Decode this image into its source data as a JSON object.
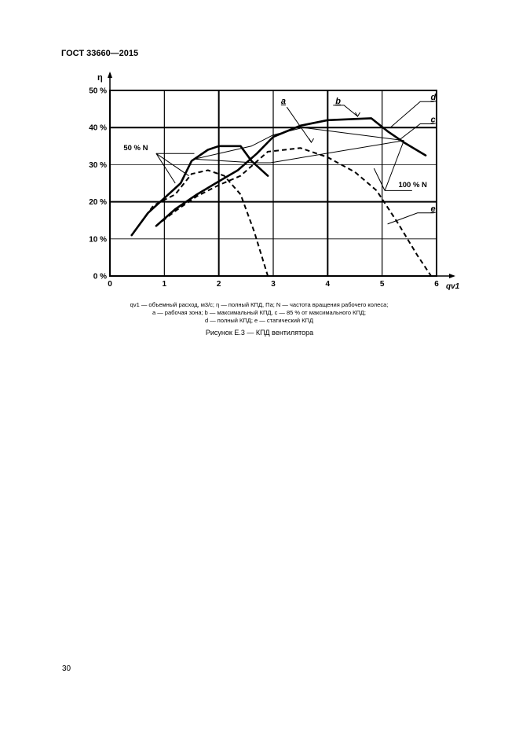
{
  "header": {
    "doc_id": "ГОСТ 33660—2015"
  },
  "legend_lines": [
    "qv1 — объемный расход, м3/с; η — полный КПД, Па; N — частота вращения рабочего колеса;",
    "a — рабочая зона; b — максимальный КПД, c — 85 % от максимального КПД;",
    "d — полный КПД; e — статический КПД"
  ],
  "caption": "Рисунок Е.3 — КПД вентилятора",
  "page_number": "30",
  "chart_data": {
    "type": "line",
    "title": "",
    "xlabel": "qv1",
    "ylabel": "η",
    "xlim": [
      0,
      6
    ],
    "ylim": [
      0,
      50
    ],
    "x_ticks": [
      "0",
      "1",
      "2",
      "3",
      "4",
      "5",
      "6"
    ],
    "y_ticks": [
      "0 %",
      "10 %",
      "20 %",
      "30 %",
      "40 %",
      "50 %"
    ],
    "grid": true,
    "series": [
      {
        "name": "d",
        "style": "solid-thick",
        "x": [
          0.4,
          0.7,
          1.0,
          1.3,
          1.5,
          1.8,
          2.0,
          2.4,
          2.6,
          2.9
        ],
        "y": [
          11,
          17,
          21,
          25,
          31,
          34,
          35,
          35,
          31,
          27
        ]
      },
      {
        "name": "d",
        "style": "solid-thick",
        "x": [
          0.85,
          1.2,
          1.6,
          2.0,
          2.35,
          2.7,
          3.0,
          3.5,
          4.0,
          4.8,
          5.1,
          5.4,
          5.8
        ],
        "y": [
          13.5,
          18,
          22,
          25.5,
          28.5,
          33,
          37.5,
          40.5,
          42,
          42.5,
          39,
          36,
          32.5
        ]
      },
      {
        "name": "e",
        "style": "dashed",
        "x": [
          0.4,
          0.8,
          1.2,
          1.5,
          1.8,
          2.1,
          2.4,
          2.65,
          2.9
        ],
        "y": [
          11,
          19,
          22,
          27.5,
          28.5,
          27,
          22,
          12,
          0
        ]
      },
      {
        "name": "e",
        "style": "dashed",
        "x": [
          0.85,
          1.2,
          1.6,
          2.0,
          2.4,
          2.9,
          3.5,
          4.0,
          4.5,
          4.9,
          5.3,
          5.65,
          5.9
        ],
        "y": [
          13.5,
          17.5,
          21.5,
          24.5,
          27,
          33.5,
          34.5,
          32,
          28,
          23,
          14,
          5.5,
          0
        ]
      },
      {
        "name": "a",
        "style": "solid-thin",
        "x": [
          1.55,
          2.6,
          3.0,
          3.55,
          5.4,
          5.4,
          2.95,
          2.65,
          1.55
        ],
        "y": [
          31.5,
          35,
          38,
          40,
          36.5,
          36.5,
          30.5,
          30.5,
          31.5
        ]
      }
    ],
    "annotations": {
      "a": "a",
      "b": "b",
      "c": "c",
      "d": "d",
      "e": "e",
      "n50": "50 % N",
      "n100": "100 % N"
    }
  }
}
